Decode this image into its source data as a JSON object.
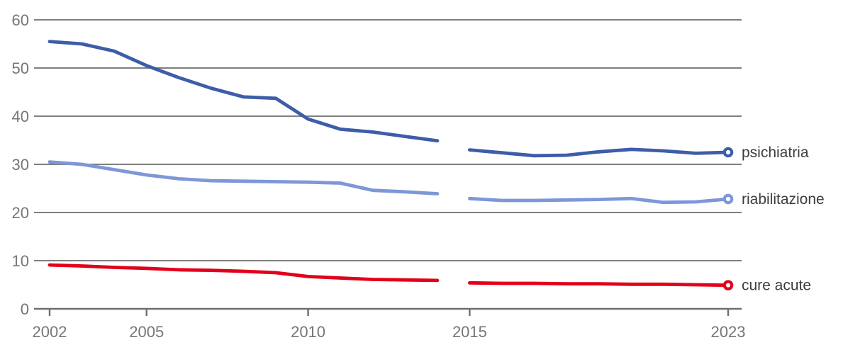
{
  "chart_data": {
    "type": "line",
    "grid": true,
    "legend_position": "right-of-line-end",
    "x_axis": {
      "range": [
        2002,
        2023
      ],
      "tick_years": [
        2002,
        2005,
        2010,
        2015,
        2023
      ]
    },
    "y_axis": {
      "range": [
        0,
        60
      ],
      "ticks": [
        0,
        10,
        20,
        30,
        40,
        50,
        60
      ]
    },
    "data_break_between": [
      2014,
      2015
    ],
    "series": [
      {
        "name": "psichiatria",
        "color": "#3D5DA9",
        "segments": [
          {
            "start_year": 2002,
            "values": [
              55.5,
              55.0,
              53.5,
              50.5,
              48.0,
              45.8,
              44.0,
              43.7,
              39.4,
              37.3,
              36.7,
              35.8,
              34.9
            ]
          },
          {
            "start_year": 2015,
            "values": [
              33.0,
              32.4,
              31.8,
              31.9,
              32.6,
              33.1,
              32.8,
              32.3,
              32.5
            ]
          }
        ]
      },
      {
        "name": "riabilitazione",
        "color": "#7D97D8",
        "segments": [
          {
            "start_year": 2002,
            "values": [
              30.5,
              30.0,
              28.9,
              27.8,
              27.0,
              26.6,
              26.5,
              26.4,
              26.3,
              26.1,
              24.6,
              24.3,
              23.9
            ]
          },
          {
            "start_year": 2015,
            "values": [
              22.9,
              22.5,
              22.5,
              22.6,
              22.7,
              22.9,
              22.1,
              22.2,
              22.8
            ]
          }
        ]
      },
      {
        "name": "cure acute",
        "color": "#E2001A",
        "segments": [
          {
            "start_year": 2002,
            "values": [
              9.1,
              8.9,
              8.6,
              8.4,
              8.1,
              8.0,
              7.8,
              7.5,
              6.7,
              6.4,
              6.1,
              6.0,
              5.9
            ]
          },
          {
            "start_year": 2015,
            "values": [
              5.4,
              5.3,
              5.3,
              5.2,
              5.2,
              5.1,
              5.1,
              5.0,
              4.9
            ]
          }
        ]
      }
    ],
    "style": {
      "gridline_color": "#7f7f7f",
      "axis_color": "#6f6f6f",
      "tick_label_color": "#767676",
      "series_label_color": "#3d3d3d",
      "marker_fill": "#ffffff"
    }
  }
}
